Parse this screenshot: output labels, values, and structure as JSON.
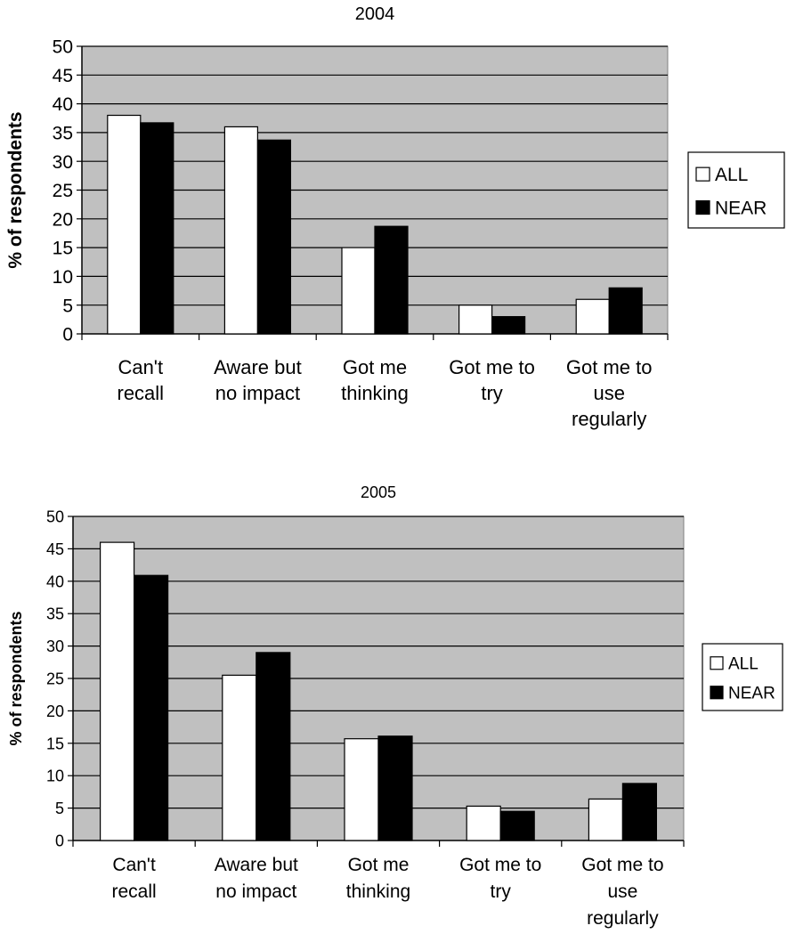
{
  "colors": {
    "plot_bg": "#c0c0c0",
    "all": "#ffffff",
    "near": "#000000",
    "grid": "#000000"
  },
  "chart_data": [
    {
      "type": "bar",
      "title": "2004",
      "ylabel": "% of respondents",
      "ylim": [
        0,
        50
      ],
      "yticks": [
        "0",
        "5",
        "10",
        "15",
        "20",
        "25",
        "30",
        "35",
        "40",
        "45",
        "50"
      ],
      "grid": true,
      "legend_position": "right",
      "categories": [
        [
          "Can't",
          "recall"
        ],
        [
          "Aware but",
          "no impact"
        ],
        [
          "Got me",
          "thinking"
        ],
        [
          "Got me to",
          "try"
        ],
        [
          "Got me to",
          "use",
          "regularly"
        ]
      ],
      "series": [
        {
          "name": "ALL",
          "values": [
            38,
            36,
            15,
            5,
            6
          ]
        },
        {
          "name": "NEAR",
          "values": [
            36.7,
            33.7,
            18.7,
            3,
            8
          ]
        }
      ]
    },
    {
      "type": "bar",
      "title": "2005",
      "ylabel": "% of respondents",
      "ylim": [
        0,
        50
      ],
      "yticks": [
        "0",
        "5",
        "10",
        "15",
        "20",
        "25",
        "30",
        "35",
        "40",
        "45",
        "50"
      ],
      "grid": true,
      "legend_position": "right",
      "categories": [
        [
          "Can't",
          "recall"
        ],
        [
          "Aware but",
          "no impact"
        ],
        [
          "Got me",
          "thinking"
        ],
        [
          "Got me to",
          "try"
        ],
        [
          "Got me to",
          "use",
          "regularly"
        ]
      ],
      "series": [
        {
          "name": "ALL",
          "values": [
            46,
            25.5,
            15.7,
            5.3,
            6.4
          ]
        },
        {
          "name": "NEAR",
          "values": [
            40.9,
            29,
            16.1,
            4.5,
            8.8
          ]
        }
      ]
    }
  ]
}
